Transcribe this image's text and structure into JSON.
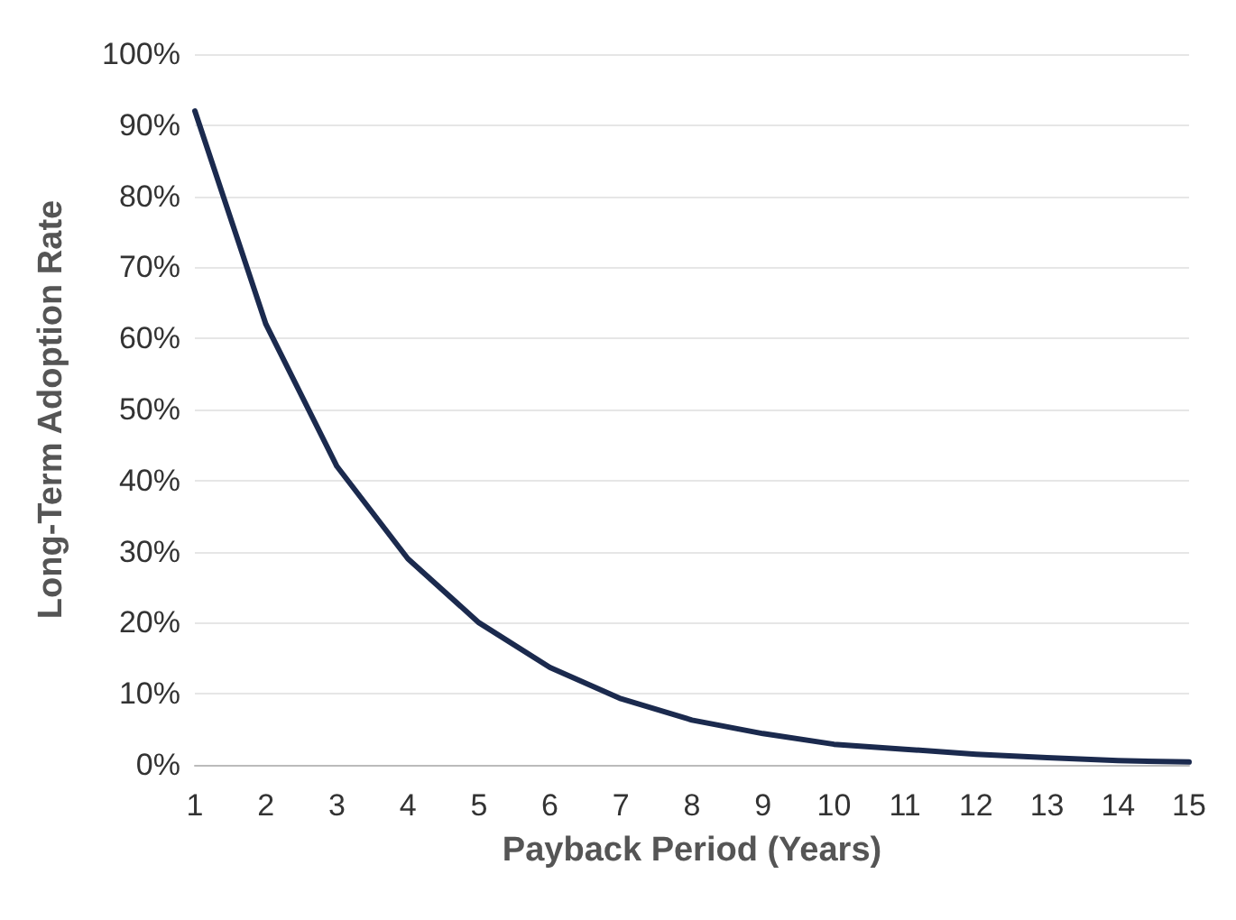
{
  "chart_data": {
    "type": "line",
    "xlabel": "Payback Period (Years)",
    "ylabel": "Long-Term Adoption Rate",
    "x": [
      1,
      2,
      3,
      4,
      5,
      6,
      7,
      8,
      9,
      10,
      11,
      12,
      13,
      14,
      15
    ],
    "series": [
      {
        "color": "#1b2a4e",
        "values": [
          92,
          62,
          42,
          29,
          20,
          13.7,
          9.3,
          6.3,
          4.4,
          2.9,
          2.2,
          1.5,
          1,
          0.6,
          0.4
        ]
      }
    ],
    "xlim": [
      1,
      15
    ],
    "xticks": [
      1,
      2,
      3,
      4,
      5,
      6,
      7,
      8,
      9,
      10,
      11,
      12,
      13,
      14,
      15
    ],
    "ylim": [
      0,
      100
    ],
    "yticks": [
      {
        "value": 0,
        "label": "0%"
      },
      {
        "value": 10,
        "label": "10%"
      },
      {
        "value": 20,
        "label": "20%"
      },
      {
        "value": 30,
        "label": "30%"
      },
      {
        "value": 40,
        "label": "40%"
      },
      {
        "value": 50,
        "label": "50%"
      },
      {
        "value": 60,
        "label": "60%"
      },
      {
        "value": 70,
        "label": "70%"
      },
      {
        "value": 80,
        "label": "80%"
      },
      {
        "value": 90,
        "label": "90%"
      },
      {
        "value": 100,
        "label": "100%"
      }
    ],
    "grid": "y",
    "marker": "none",
    "line_style": "solid"
  }
}
